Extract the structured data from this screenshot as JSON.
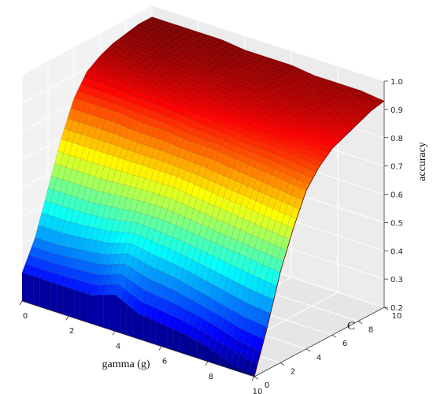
{
  "chart_data": {
    "type": "surface3d",
    "title": "",
    "xlabel": "gamma (g)",
    "ylabel": "C",
    "zlabel": "accuracy",
    "xlim": [
      0,
      10
    ],
    "ylim": [
      0,
      10
    ],
    "zlim": [
      0.2,
      1.0
    ],
    "x_ticks": [
      "0",
      "2",
      "4",
      "6",
      "8",
      "10"
    ],
    "y_ticks": [
      "0",
      "2",
      "4",
      "6",
      "8",
      "10"
    ],
    "z_ticks": [
      "0.2",
      "0.3",
      "0.4",
      "0.5",
      "0.6",
      "0.7",
      "0.8",
      "0.9",
      "1.0"
    ],
    "colormap": "jet",
    "grid": true,
    "surface": {
      "C": [
        0,
        1,
        2,
        3,
        4,
        5,
        6,
        7,
        8,
        9,
        10
      ],
      "gamma": [
        0,
        1,
        2,
        3,
        4,
        5,
        6,
        7,
        8,
        9,
        10
      ],
      "accuracy": [
        [
          0.3,
          0.3,
          0.3,
          0.3,
          0.33,
          0.29,
          0.28,
          0.27,
          0.25,
          0.22,
          0.2
        ],
        [
          0.4,
          0.4,
          0.41,
          0.42,
          0.45,
          0.43,
          0.42,
          0.4,
          0.38,
          0.36,
          0.35
        ],
        [
          0.55,
          0.55,
          0.55,
          0.56,
          0.57,
          0.57,
          0.56,
          0.55,
          0.54,
          0.53,
          0.52
        ],
        [
          0.7,
          0.7,
          0.7,
          0.7,
          0.7,
          0.7,
          0.69,
          0.68,
          0.67,
          0.66,
          0.65
        ],
        [
          0.82,
          0.82,
          0.82,
          0.81,
          0.81,
          0.8,
          0.8,
          0.79,
          0.78,
          0.77,
          0.76
        ],
        [
          0.89,
          0.89,
          0.88,
          0.88,
          0.87,
          0.86,
          0.85,
          0.84,
          0.84,
          0.83,
          0.82
        ],
        [
          0.92,
          0.92,
          0.92,
          0.91,
          0.9,
          0.89,
          0.89,
          0.88,
          0.87,
          0.86,
          0.86
        ],
        [
          0.94,
          0.94,
          0.94,
          0.93,
          0.92,
          0.92,
          0.91,
          0.91,
          0.9,
          0.89,
          0.88
        ],
        [
          0.95,
          0.95,
          0.95,
          0.94,
          0.94,
          0.93,
          0.93,
          0.92,
          0.92,
          0.91,
          0.9
        ],
        [
          0.96,
          0.96,
          0.95,
          0.95,
          0.95,
          0.94,
          0.94,
          0.93,
          0.93,
          0.92,
          0.92
        ],
        [
          0.96,
          0.96,
          0.96,
          0.96,
          0.95,
          0.95,
          0.95,
          0.94,
          0.94,
          0.94,
          0.93
        ]
      ]
    }
  }
}
